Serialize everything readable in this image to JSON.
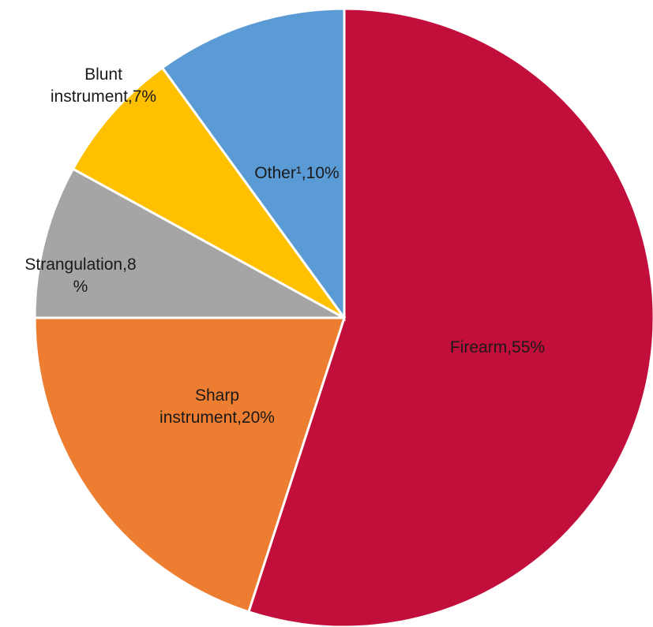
{
  "chart_data": {
    "type": "pie",
    "title": "",
    "start_angle_deg": 0,
    "direction": "clockwise",
    "legend": "none",
    "slices": [
      {
        "name": "Firearm",
        "value": 55,
        "color": "#C20E3A",
        "label_lines": [
          "Firearm,55%"
        ]
      },
      {
        "name": "Sharp instrument",
        "value": 20,
        "color": "#ED7D31",
        "label_lines": [
          "Sharp",
          "instrument,20%"
        ]
      },
      {
        "name": "Strangulation",
        "value": 8,
        "color": "#A5A5A5",
        "label_lines": [
          "Strangulation,8",
          "%"
        ]
      },
      {
        "name": "Blunt instrument",
        "value": 7,
        "color": "#FFC000",
        "label_lines": [
          "Blunt",
          "instrument,7%"
        ]
      },
      {
        "name": "Other¹",
        "value": 10,
        "color": "#5B9BD5",
        "label_lines": [
          "Other¹,10%"
        ]
      }
    ]
  }
}
